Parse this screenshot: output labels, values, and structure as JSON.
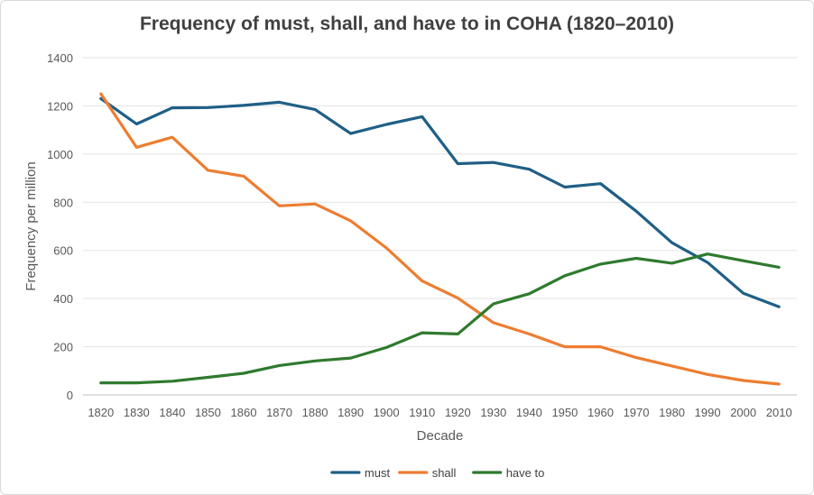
{
  "chart_data": {
    "type": "line",
    "title": "Frequency of must, shall, and have to in COHA (1820–2010)",
    "xlabel": "Decade",
    "ylabel": "Frequency per million",
    "ylim": [
      0,
      1400
    ],
    "yticks": [
      0,
      200,
      400,
      600,
      800,
      1000,
      1200,
      1400
    ],
    "grid": true,
    "legend": "bottom",
    "categories": [
      "1820",
      "1830",
      "1840",
      "1850",
      "1860",
      "1870",
      "1880",
      "1890",
      "1900",
      "1910",
      "1920",
      "1930",
      "1940",
      "1950",
      "1960",
      "1970",
      "1980",
      "1990",
      "2000",
      "2010"
    ],
    "series": [
      {
        "name": "must",
        "color": "#1f5f86",
        "values": [
          1230,
          1125,
          1192,
          1193,
          1202,
          1215,
          1185,
          1085,
          1123,
          1155,
          960,
          965,
          937,
          863,
          877,
          763,
          632,
          550,
          422,
          366
        ]
      },
      {
        "name": "shall",
        "color": "#ed7d31",
        "values": [
          1250,
          1028,
          1070,
          933,
          908,
          785,
          793,
          723,
          610,
          473,
          402,
          300,
          253,
          200,
          200,
          155,
          120,
          85,
          60,
          45
        ]
      },
      {
        "name": "have to",
        "color": "#2f7a2f",
        "values": [
          50,
          50,
          57,
          73,
          90,
          122,
          141,
          153,
          197,
          258,
          253,
          378,
          420,
          495,
          543,
          567,
          547,
          585,
          557,
          530
        ]
      }
    ]
  }
}
